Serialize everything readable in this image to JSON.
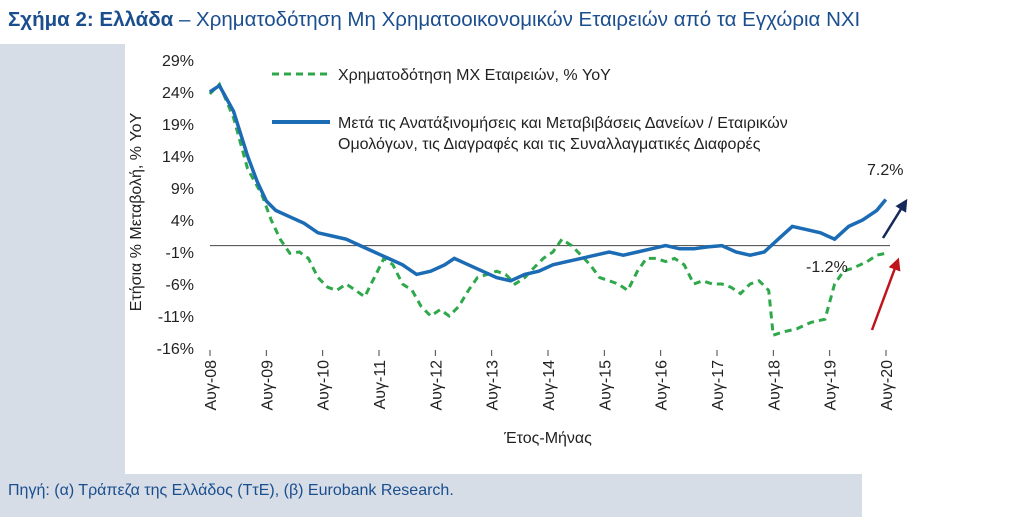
{
  "title": {
    "bold": "Σχήμα 2: Ελλάδα",
    "rest": " – Χρηματοδότηση Μη Χρηματοοικονομικών Εταιρειών από τα Εγχώρια ΝΧΙ"
  },
  "source": "Πηγή: (α) Τράπεζα της Ελλάδος (ΤτΕ), (β) Eurobank Research.",
  "chart_data": {
    "type": "line",
    "xlabel": "Έτος-Μήνας",
    "ylabel": "Ετήσια % Μεταβολή, % YoY",
    "ylim": [
      -16,
      29
    ],
    "yticks": [
      29,
      24,
      19,
      14,
      9,
      4,
      -1,
      -6,
      -11,
      -16
    ],
    "ytick_labels": [
      "29%",
      "24%",
      "19%",
      "14%",
      "9%",
      "4%",
      "-1%",
      "-6%",
      "-11%",
      "-16%"
    ],
    "xlim": [
      2008.583,
      2020.583
    ],
    "xticks": [
      2008.583,
      2009.583,
      2010.583,
      2011.583,
      2012.583,
      2013.583,
      2014.583,
      2015.583,
      2016.583,
      2017.583,
      2018.583,
      2019.583,
      2020.583
    ],
    "xtick_labels": [
      "Αυγ-08",
      "Αυγ-09",
      "Αυγ-10",
      "Αυγ-11",
      "Αυγ-12",
      "Αυγ-13",
      "Αυγ-14",
      "Αυγ-15",
      "Αυγ-16",
      "Αυγ-17",
      "Αυγ-18",
      "Αυγ-19",
      "Αυγ-20"
    ],
    "legend_position": "top",
    "series": [
      {
        "name": "Χρηματοδότηση ΜΧ Εταιρειών, % YoY",
        "style": "dashed",
        "color": "#2ea84a",
        "points": [
          [
            2008.58,
            23.7
          ],
          [
            2008.75,
            25.2
          ],
          [
            2009.0,
            20.0
          ],
          [
            2009.25,
            12.0
          ],
          [
            2009.5,
            8.0
          ],
          [
            2009.67,
            4.0
          ],
          [
            2009.83,
            1.0
          ],
          [
            2010.0,
            -1.2
          ],
          [
            2010.17,
            -1.0
          ],
          [
            2010.33,
            -2.0
          ],
          [
            2010.5,
            -5.0
          ],
          [
            2010.67,
            -6.5
          ],
          [
            2010.83,
            -7.0
          ],
          [
            2011.0,
            -6.0
          ],
          [
            2011.17,
            -7.0
          ],
          [
            2011.33,
            -8.0
          ],
          [
            2011.5,
            -5.0
          ],
          [
            2011.67,
            -2.0
          ],
          [
            2011.83,
            -3.0
          ],
          [
            2012.0,
            -6.0
          ],
          [
            2012.17,
            -7.0
          ],
          [
            2012.33,
            -9.5
          ],
          [
            2012.5,
            -11.0
          ],
          [
            2012.67,
            -10.0
          ],
          [
            2012.83,
            -11.0
          ],
          [
            2013.0,
            -9.5
          ],
          [
            2013.17,
            -7.0
          ],
          [
            2013.33,
            -5.0
          ],
          [
            2013.5,
            -4.5
          ],
          [
            2013.67,
            -4.0
          ],
          [
            2013.83,
            -4.5
          ],
          [
            2014.0,
            -6.0
          ],
          [
            2014.17,
            -5.0
          ],
          [
            2014.33,
            -3.5
          ],
          [
            2014.5,
            -2.0
          ],
          [
            2014.67,
            -1.0
          ],
          [
            2014.83,
            1.0
          ],
          [
            2015.0,
            0.0
          ],
          [
            2015.17,
            -1.5
          ],
          [
            2015.33,
            -3.0
          ],
          [
            2015.5,
            -5.0
          ],
          [
            2015.67,
            -5.5
          ],
          [
            2015.83,
            -6.0
          ],
          [
            2016.0,
            -7.0
          ],
          [
            2016.17,
            -4.0
          ],
          [
            2016.33,
            -2.0
          ],
          [
            2016.5,
            -2.0
          ],
          [
            2016.67,
            -2.5
          ],
          [
            2016.83,
            -2.0
          ],
          [
            2017.0,
            -3.0
          ],
          [
            2017.17,
            -6.0
          ],
          [
            2017.33,
            -5.5
          ],
          [
            2017.5,
            -6.0
          ],
          [
            2017.67,
            -6.0
          ],
          [
            2017.83,
            -6.5
          ],
          [
            2018.0,
            -7.5
          ],
          [
            2018.17,
            -6.0
          ],
          [
            2018.33,
            -5.5
          ],
          [
            2018.5,
            -7.0
          ],
          [
            2018.58,
            -14.0
          ],
          [
            2018.75,
            -13.5
          ],
          [
            2019.0,
            -13.0
          ],
          [
            2019.25,
            -12.0
          ],
          [
            2019.5,
            -11.5
          ],
          [
            2019.67,
            -6.0
          ],
          [
            2019.83,
            -4.0
          ],
          [
            2020.0,
            -3.5
          ],
          [
            2020.25,
            -2.5
          ],
          [
            2020.42,
            -1.5
          ],
          [
            2020.58,
            -1.2
          ]
        ]
      },
      {
        "name": "Μετά τις Ανατάξινομήσεις και Μεταβιβάσεις Δανείων / Εταιρικών Ομολόγων, τις Διαγραφές και τις Συναλλαγματικές Διαφορές",
        "legend_lines": [
          "Μετά τις Ανατάξινομήσεις και Μεταβιβάσεις Δανείων / Εταιρικών",
          "Ομολόγων, τις Διαγραφές και τις Συναλλαγματικές Διαφορές"
        ],
        "style": "solid",
        "color": "#1b6cb5",
        "points": [
          [
            2008.58,
            24.0
          ],
          [
            2008.75,
            25.0
          ],
          [
            2009.0,
            21.0
          ],
          [
            2009.25,
            14.0
          ],
          [
            2009.42,
            10.0
          ],
          [
            2009.58,
            7.0
          ],
          [
            2009.75,
            5.5
          ],
          [
            2010.0,
            4.5
          ],
          [
            2010.25,
            3.5
          ],
          [
            2010.5,
            2.0
          ],
          [
            2010.75,
            1.5
          ],
          [
            2011.0,
            1.0
          ],
          [
            2011.25,
            0.0
          ],
          [
            2011.5,
            -1.0
          ],
          [
            2011.75,
            -2.0
          ],
          [
            2012.0,
            -3.0
          ],
          [
            2012.25,
            -4.5
          ],
          [
            2012.5,
            -4.0
          ],
          [
            2012.75,
            -3.0
          ],
          [
            2012.92,
            -2.0
          ],
          [
            2013.17,
            -3.0
          ],
          [
            2013.42,
            -4.0
          ],
          [
            2013.67,
            -5.0
          ],
          [
            2013.92,
            -5.5
          ],
          [
            2014.17,
            -4.5
          ],
          [
            2014.42,
            -4.0
          ],
          [
            2014.67,
            -3.0
          ],
          [
            2014.92,
            -2.5
          ],
          [
            2015.17,
            -2.0
          ],
          [
            2015.42,
            -1.5
          ],
          [
            2015.67,
            -1.0
          ],
          [
            2015.92,
            -1.5
          ],
          [
            2016.17,
            -1.0
          ],
          [
            2016.42,
            -0.5
          ],
          [
            2016.67,
            0.0
          ],
          [
            2016.92,
            -0.5
          ],
          [
            2017.17,
            -0.5
          ],
          [
            2017.42,
            -0.2
          ],
          [
            2017.67,
            0.0
          ],
          [
            2017.92,
            -1.0
          ],
          [
            2018.17,
            -1.5
          ],
          [
            2018.42,
            -1.0
          ],
          [
            2018.67,
            1.0
          ],
          [
            2018.92,
            3.0
          ],
          [
            2019.17,
            2.5
          ],
          [
            2019.42,
            2.0
          ],
          [
            2019.67,
            1.0
          ],
          [
            2019.92,
            3.0
          ],
          [
            2020.17,
            4.0
          ],
          [
            2020.42,
            5.5
          ],
          [
            2020.58,
            7.2
          ]
        ]
      }
    ],
    "annotations": [
      {
        "text": "7.2%",
        "x": 2020.58,
        "y": 7.2
      },
      {
        "text": "-1.2%",
        "x": 2020.58,
        "y": -1.2
      }
    ]
  }
}
